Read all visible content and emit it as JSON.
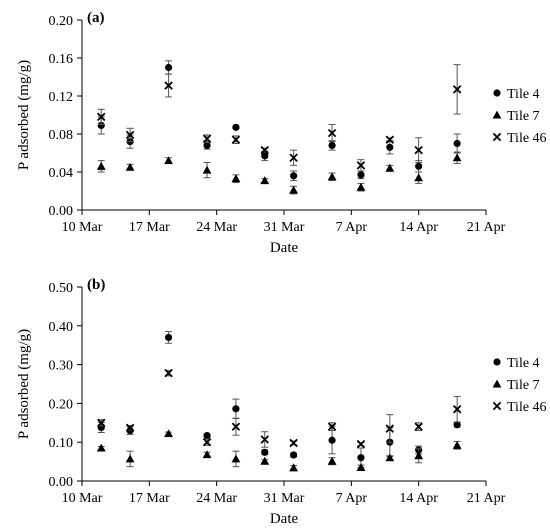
{
  "chart_data": [
    {
      "type": "scatter",
      "panel_label": "(a)",
      "xlabel": "Date",
      "ylabel": "P adsorbed  (mg/g)",
      "x_tick_labels": [
        "10 Mar",
        "17 Mar",
        "24 Mar",
        "31 Mar",
        "7 Apr",
        "14 Apr",
        "21 Apr"
      ],
      "x_tick_days": [
        0,
        7,
        14,
        21,
        28,
        35,
        42
      ],
      "xlim_days": [
        0,
        42
      ],
      "y_tick_labels": [
        "0.00",
        "0.04",
        "0.08",
        "0.12",
        "0.16",
        "0.20"
      ],
      "ylim": [
        0,
        0.2
      ],
      "legend_position": "right",
      "series": [
        {
          "name": "Tile 4",
          "marker": "circle",
          "x": [
            2,
            5,
            9,
            13,
            16,
            19,
            22,
            26,
            29,
            32,
            35,
            39
          ],
          "y": [
            0.089,
            0.072,
            0.15,
            0.068,
            0.087,
            0.057,
            0.036,
            0.068,
            0.037,
            0.066,
            0.046,
            0.07
          ],
          "err": [
            0.009,
            0.007,
            0.007,
            0.004,
            0.0,
            0.005,
            0.005,
            0.005,
            0.004,
            0.007,
            0.006,
            0.01
          ]
        },
        {
          "name": "Tile 7",
          "marker": "triangle",
          "x": [
            2,
            5,
            9,
            13,
            16,
            19,
            22,
            26,
            29,
            32,
            35,
            39
          ],
          "y": [
            0.046,
            0.045,
            0.052,
            0.042,
            0.033,
            0.031,
            0.021,
            0.035,
            0.024,
            0.044,
            0.034,
            0.055
          ],
          "err": [
            0.006,
            0.003,
            0.003,
            0.008,
            0.004,
            0.002,
            0.004,
            0.004,
            0.004,
            0.003,
            0.006,
            0.006
          ]
        },
        {
          "name": "Tile 46",
          "marker": "x",
          "x": [
            2,
            5,
            9,
            13,
            16,
            19,
            22,
            26,
            29,
            32,
            35,
            39
          ],
          "y": [
            0.098,
            0.079,
            0.131,
            0.075,
            0.074,
            0.063,
            0.055,
            0.081,
            0.047,
            0.074,
            0.063,
            0.127
          ],
          "err": [
            0.008,
            0.007,
            0.012,
            0.004,
            0.004,
            0.002,
            0.008,
            0.009,
            0.006,
            0.002,
            0.013,
            0.026
          ]
        }
      ]
    },
    {
      "type": "scatter",
      "panel_label": "(b)",
      "xlabel": "Date",
      "ylabel": "P adsorbed (mg/g)",
      "x_tick_labels": [
        "10 Mar",
        "17 Mar",
        "24 Mar",
        "31 Mar",
        "7 Apr",
        "14 Apr",
        "21 Apr"
      ],
      "x_tick_days": [
        0,
        7,
        14,
        21,
        28,
        35,
        42
      ],
      "xlim_days": [
        0,
        42
      ],
      "y_tick_labels": [
        "0.00",
        "0.10",
        "0.20",
        "0.30",
        "0.40",
        "0.50"
      ],
      "ylim": [
        0,
        0.5
      ],
      "legend_position": "right",
      "series": [
        {
          "name": "Tile 4",
          "marker": "circle",
          "x": [
            2,
            5,
            9,
            13,
            16,
            19,
            22,
            26,
            29,
            32,
            35,
            39
          ],
          "y": [
            0.138,
            0.13,
            0.37,
            0.117,
            0.186,
            0.074,
            0.067,
            0.105,
            0.06,
            0.1,
            0.08,
            0.145
          ],
          "err": [
            0.013,
            0.01,
            0.015,
            0.004,
            0.025,
            0.006,
            0.005,
            0.035,
            0.025,
            0.037,
            0.01,
            0.006
          ]
        },
        {
          "name": "Tile 7",
          "marker": "triangle",
          "x": [
            2,
            5,
            9,
            13,
            16,
            19,
            22,
            26,
            29,
            32,
            35,
            39
          ],
          "y": [
            0.085,
            0.057,
            0.122,
            0.068,
            0.057,
            0.051,
            0.034,
            0.051,
            0.035,
            0.06,
            0.065,
            0.092
          ],
          "err": [
            0.004,
            0.02,
            0.004,
            0.006,
            0.02,
            0.004,
            0.006,
            0.009,
            0.006,
            0.005,
            0.018,
            0.01
          ]
        },
        {
          "name": "Tile 46",
          "marker": "x",
          "x": [
            2,
            5,
            9,
            13,
            16,
            19,
            22,
            26,
            29,
            32,
            35,
            39
          ],
          "y": [
            0.15,
            0.137,
            0.278,
            0.1,
            0.14,
            0.107,
            0.098,
            0.14,
            0.095,
            0.135,
            0.14,
            0.185
          ],
          "err": [
            0.008,
            0.006,
            0.007,
            0.008,
            0.022,
            0.02,
            0.005,
            0.01,
            0.004,
            0.036,
            0.01,
            0.033
          ]
        }
      ]
    }
  ]
}
